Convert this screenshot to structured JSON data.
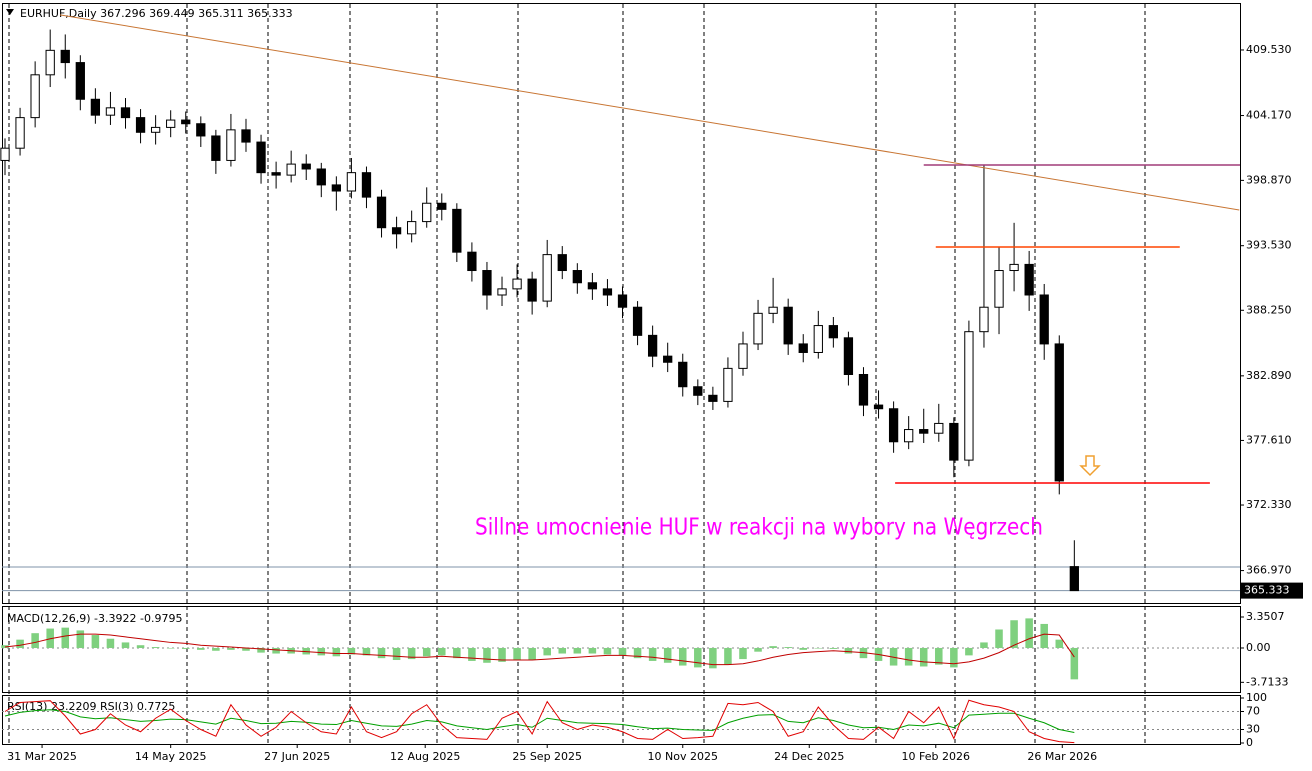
{
  "chart_data": [
    {
      "type": "candlestick",
      "title": "EURHUF,Daily",
      "annotation": "Sillne umocnienie HUF w reakcji na wybory na Węgrzech",
      "up_color": "#ffffff",
      "down_color": "#000000",
      "wick_color": "#000000",
      "xlim": [
        -0.2,
        82
      ],
      "ylim": [
        364.32,
        413.37
      ],
      "yticks": [
        {
          "value": 409.53,
          "label": "409.530"
        },
        {
          "value": 404.17,
          "label": "404.170"
        },
        {
          "value": 398.87,
          "label": "398.870"
        },
        {
          "value": 393.53,
          "label": "393.530"
        },
        {
          "value": 388.25,
          "label": "388.250"
        },
        {
          "value": 382.89,
          "label": "382.890"
        },
        {
          "value": 377.61,
          "label": "377.610"
        },
        {
          "value": 372.33,
          "label": "372.330"
        },
        {
          "value": 366.97,
          "label": "366.970"
        }
      ],
      "xticks": [
        {
          "value": 2.46,
          "label": "31 Mar 2025"
        },
        {
          "value": 11.0,
          "label": "14 May 2025"
        },
        {
          "value": 19.4,
          "label": "27 Jun 2025"
        },
        {
          "value": 27.9,
          "label": "12 Aug 2025"
        },
        {
          "value": 36.0,
          "label": "25 Sep 2025"
        },
        {
          "value": 45.0,
          "label": "10 Nov 2025"
        },
        {
          "value": 53.4,
          "label": "24 Dec 2025"
        },
        {
          "value": 61.8,
          "label": "10 Feb 2026"
        },
        {
          "value": 70.2,
          "label": "26 Mar 2026"
        }
      ],
      "candles": [
        [
          400.5,
          402.3,
          399.3,
          401.5
        ],
        [
          401.5,
          404.8,
          400.9,
          404
        ],
        [
          404,
          408.6,
          403.2,
          407.5
        ],
        [
          407.5,
          411.2,
          406.5,
          409.5
        ],
        [
          409.5,
          410.8,
          407.2,
          408.5
        ],
        [
          408.5,
          409.1,
          404.6,
          405.5
        ],
        [
          405.5,
          406.4,
          403.5,
          404.2
        ],
        [
          404.2,
          406.1,
          403.4,
          404.8
        ],
        [
          404.8,
          405.6,
          403.1,
          404
        ],
        [
          404,
          404.7,
          401.9,
          402.8
        ],
        [
          402.8,
          404.2,
          401.8,
          403.2
        ],
        [
          403.2,
          404.6,
          402.4,
          403.8
        ],
        [
          403.8,
          404.5,
          402.7,
          403.5
        ],
        [
          403.5,
          404.1,
          401.6,
          402.5
        ],
        [
          402.5,
          403,
          399.4,
          400.5
        ],
        [
          400.5,
          404.3,
          400,
          403
        ],
        [
          403,
          403.9,
          401.2,
          402
        ],
        [
          402,
          402.6,
          398.6,
          399.5
        ],
        [
          399.5,
          400.4,
          398.2,
          399.3
        ],
        [
          399.3,
          401.3,
          398.7,
          400.2
        ],
        [
          400.2,
          401,
          398.9,
          399.8
        ],
        [
          399.8,
          400.3,
          397.5,
          398.5
        ],
        [
          398.5,
          399.2,
          396.4,
          398
        ],
        [
          398,
          400.7,
          397.4,
          399.5
        ],
        [
          399.5,
          400,
          396.6,
          397.5
        ],
        [
          397.5,
          398.1,
          394.2,
          395
        ],
        [
          395,
          395.9,
          393.3,
          394.5
        ],
        [
          394.5,
          396.4,
          393.8,
          395.5
        ],
        [
          395.5,
          398.3,
          395,
          397
        ],
        [
          397,
          397.8,
          395.6,
          396.5
        ],
        [
          396.5,
          397,
          392.2,
          393
        ],
        [
          393,
          393.8,
          390.6,
          391.5
        ],
        [
          391.5,
          392.2,
          388.3,
          389.5
        ],
        [
          389.5,
          391,
          388.6,
          390
        ],
        [
          390,
          392,
          389.3,
          390.8
        ],
        [
          390.8,
          391.4,
          387.9,
          389
        ],
        [
          389,
          394,
          388.5,
          392.8
        ],
        [
          392.8,
          393.5,
          390.8,
          391.5
        ],
        [
          391.5,
          392.1,
          389.6,
          390.5
        ],
        [
          390.5,
          391.3,
          389.1,
          390
        ],
        [
          390,
          390.8,
          388.6,
          389.5
        ],
        [
          389.5,
          390.2,
          387.6,
          388.5
        ],
        [
          388.5,
          389,
          385.4,
          386.2
        ],
        [
          386.2,
          387,
          383.6,
          384.5
        ],
        [
          384.5,
          385.6,
          383.2,
          384
        ],
        [
          384,
          384.7,
          381.2,
          382
        ],
        [
          382,
          382.6,
          380.5,
          381.3
        ],
        [
          381.3,
          382,
          380.1,
          380.8
        ],
        [
          380.8,
          384.4,
          380.3,
          383.5
        ],
        [
          383.5,
          386.5,
          382.9,
          385.5
        ],
        [
          385.5,
          389.1,
          385,
          388
        ],
        [
          388,
          390.9,
          387.2,
          388.5
        ],
        [
          388.5,
          389.2,
          384.6,
          385.5
        ],
        [
          385.5,
          386.3,
          384,
          384.8
        ],
        [
          384.8,
          388.2,
          384.3,
          387
        ],
        [
          387,
          387.7,
          385.2,
          386
        ],
        [
          386,
          386.5,
          382.1,
          383
        ],
        [
          383,
          383.6,
          379.6,
          380.5
        ],
        [
          380.5,
          381.7,
          379.4,
          380.2
        ],
        [
          380.2,
          380.8,
          376.6,
          377.5
        ],
        [
          377.5,
          379.6,
          376.9,
          378.5
        ],
        [
          378.5,
          380.2,
          377.4,
          378.2
        ],
        [
          378.2,
          380.6,
          377.5,
          379
        ],
        [
          379,
          379.5,
          374.6,
          376
        ],
        [
          376,
          387.4,
          375.5,
          386.5
        ],
        [
          386.5,
          400.1,
          385.2,
          388.5
        ],
        [
          388.5,
          393.4,
          386.3,
          391.5
        ],
        [
          391.5,
          395.4,
          389.8,
          392
        ],
        [
          392,
          393.1,
          388.2,
          389.5
        ],
        [
          389.5,
          390.4,
          384.2,
          385.5
        ],
        [
          385.5,
          386.2,
          373.2,
          374.3
        ],
        [
          367.296,
          369.449,
          365.311,
          365.333
        ]
      ],
      "lines": [
        {
          "color": "#c87533",
          "x": [
            3.65,
            81.95
          ],
          "values": [
            412.4,
            396.45
          ]
        },
        {
          "color": "#a03c78",
          "x": [
            61,
            82
          ],
          "values": [
            400.13,
            400.13
          ]
        },
        {
          "color": "#ff4500",
          "x": [
            61.8,
            78
          ],
          "values": [
            393.42,
            393.42
          ]
        },
        {
          "color": "#ff0000",
          "x": [
            59.1,
            80
          ],
          "values": [
            374.13,
            374.13
          ]
        }
      ],
      "price_lines": [
        367.26
      ],
      "price_line_color": "#7f93a8"
    },
    {
      "type": "macd",
      "title": "MACD(12,26,9)",
      "ylim": [
        -4.76,
        4.54
      ],
      "yticks": [
        3.3507,
        {
          "value": 0,
          "label": "0.00"
        },
        -3.7133
      ],
      "series": [
        {
          "color": "#7fd07f",
          "values": [
            0.3,
            0.9,
            1.6,
            2.1,
            2.2,
            1.9,
            1.4,
            1.0,
            0.6,
            0.3,
            0.1,
            0.0,
            -0.1,
            -0.2,
            -0.3,
            -0.2,
            -0.3,
            -0.5,
            -0.6,
            -0.6,
            -0.7,
            -0.8,
            -0.9,
            -0.7,
            -0.8,
            -1.1,
            -1.3,
            -1.2,
            -0.9,
            -0.8,
            -1.1,
            -1.4,
            -1.6,
            -1.5,
            -1.3,
            -1.3,
            -0.8,
            -0.6,
            -0.6,
            -0.6,
            -0.7,
            -0.8,
            -1.1,
            -1.4,
            -1.6,
            -1.9,
            -2.1,
            -2.2,
            -1.8,
            -1.2,
            -0.4,
            0.2,
            0.1,
            -0.2,
            0.0,
            -0.1,
            -0.6,
            -1.1,
            -1.4,
            -1.9,
            -1.9,
            -2.0,
            -1.8,
            -2.1,
            -0.8,
            0.6,
            2.0,
            3.0,
            3.2,
            2.6,
            0.9,
            -3.3922
          ]
        },
        {
          "color": "#c00000",
          "values": [
            0.1,
            0.3,
            0.6,
            1.0,
            1.3,
            1.5,
            1.5,
            1.4,
            1.2,
            1.0,
            0.8,
            0.6,
            0.5,
            0.3,
            0.2,
            0.1,
            0.0,
            -0.1,
            -0.2,
            -0.3,
            -0.4,
            -0.5,
            -0.6,
            -0.6,
            -0.7,
            -0.8,
            -0.9,
            -1.0,
            -1.0,
            -0.9,
            -1.0,
            -1.1,
            -1.2,
            -1.3,
            -1.3,
            -1.3,
            -1.2,
            -1.1,
            -1.0,
            -0.9,
            -0.8,
            -0.8,
            -0.9,
            -1.0,
            -1.2,
            -1.4,
            -1.6,
            -1.8,
            -1.8,
            -1.7,
            -1.4,
            -1.0,
            -0.7,
            -0.5,
            -0.4,
            -0.3,
            -0.4,
            -0.5,
            -0.7,
            -1.0,
            -1.3,
            -1.5,
            -1.6,
            -1.7,
            -1.5,
            -1.1,
            -0.5,
            0.3,
            1.0,
            1.5,
            1.4,
            -0.9795
          ]
        }
      ]
    },
    {
      "type": "line",
      "ylim": [
        0,
        100
      ],
      "yticks": [
        100,
        70,
        30,
        0
      ],
      "levels": [
        70,
        30
      ],
      "series": [
        {
          "name": "RSI(13)",
          "color": "#00a000",
          "values": [
            60,
            68,
            72,
            74,
            70,
            58,
            54,
            56,
            52,
            48,
            50,
            53,
            52,
            47,
            42,
            55,
            50,
            43,
            44,
            48,
            46,
            42,
            41,
            50,
            44,
            38,
            37,
            42,
            50,
            47,
            38,
            34,
            30,
            36,
            41,
            35,
            55,
            50,
            45,
            44,
            43,
            41,
            36,
            32,
            33,
            30,
            29,
            28,
            45,
            55,
            62,
            63,
            48,
            45,
            56,
            50,
            40,
            34,
            35,
            30,
            40,
            38,
            44,
            34,
            62,
            64,
            66,
            66,
            55,
            45,
            30,
            23.2209
          ]
        },
        {
          "name": "RSI(3)",
          "color": "#e00000",
          "values": [
            70,
            90,
            92,
            94,
            60,
            20,
            30,
            65,
            40,
            25,
            55,
            75,
            50,
            30,
            15,
            85,
            40,
            15,
            35,
            70,
            45,
            25,
            20,
            80,
            25,
            12,
            25,
            65,
            85,
            40,
            12,
            10,
            8,
            55,
            70,
            20,
            92,
            45,
            30,
            40,
            35,
            25,
            10,
            8,
            30,
            10,
            12,
            15,
            88,
            85,
            90,
            70,
            15,
            25,
            80,
            40,
            10,
            8,
            35,
            10,
            70,
            45,
            80,
            10,
            95,
            85,
            80,
            70,
            25,
            10,
            3,
            0.7725
          ]
        }
      ]
    }
  ]
}
